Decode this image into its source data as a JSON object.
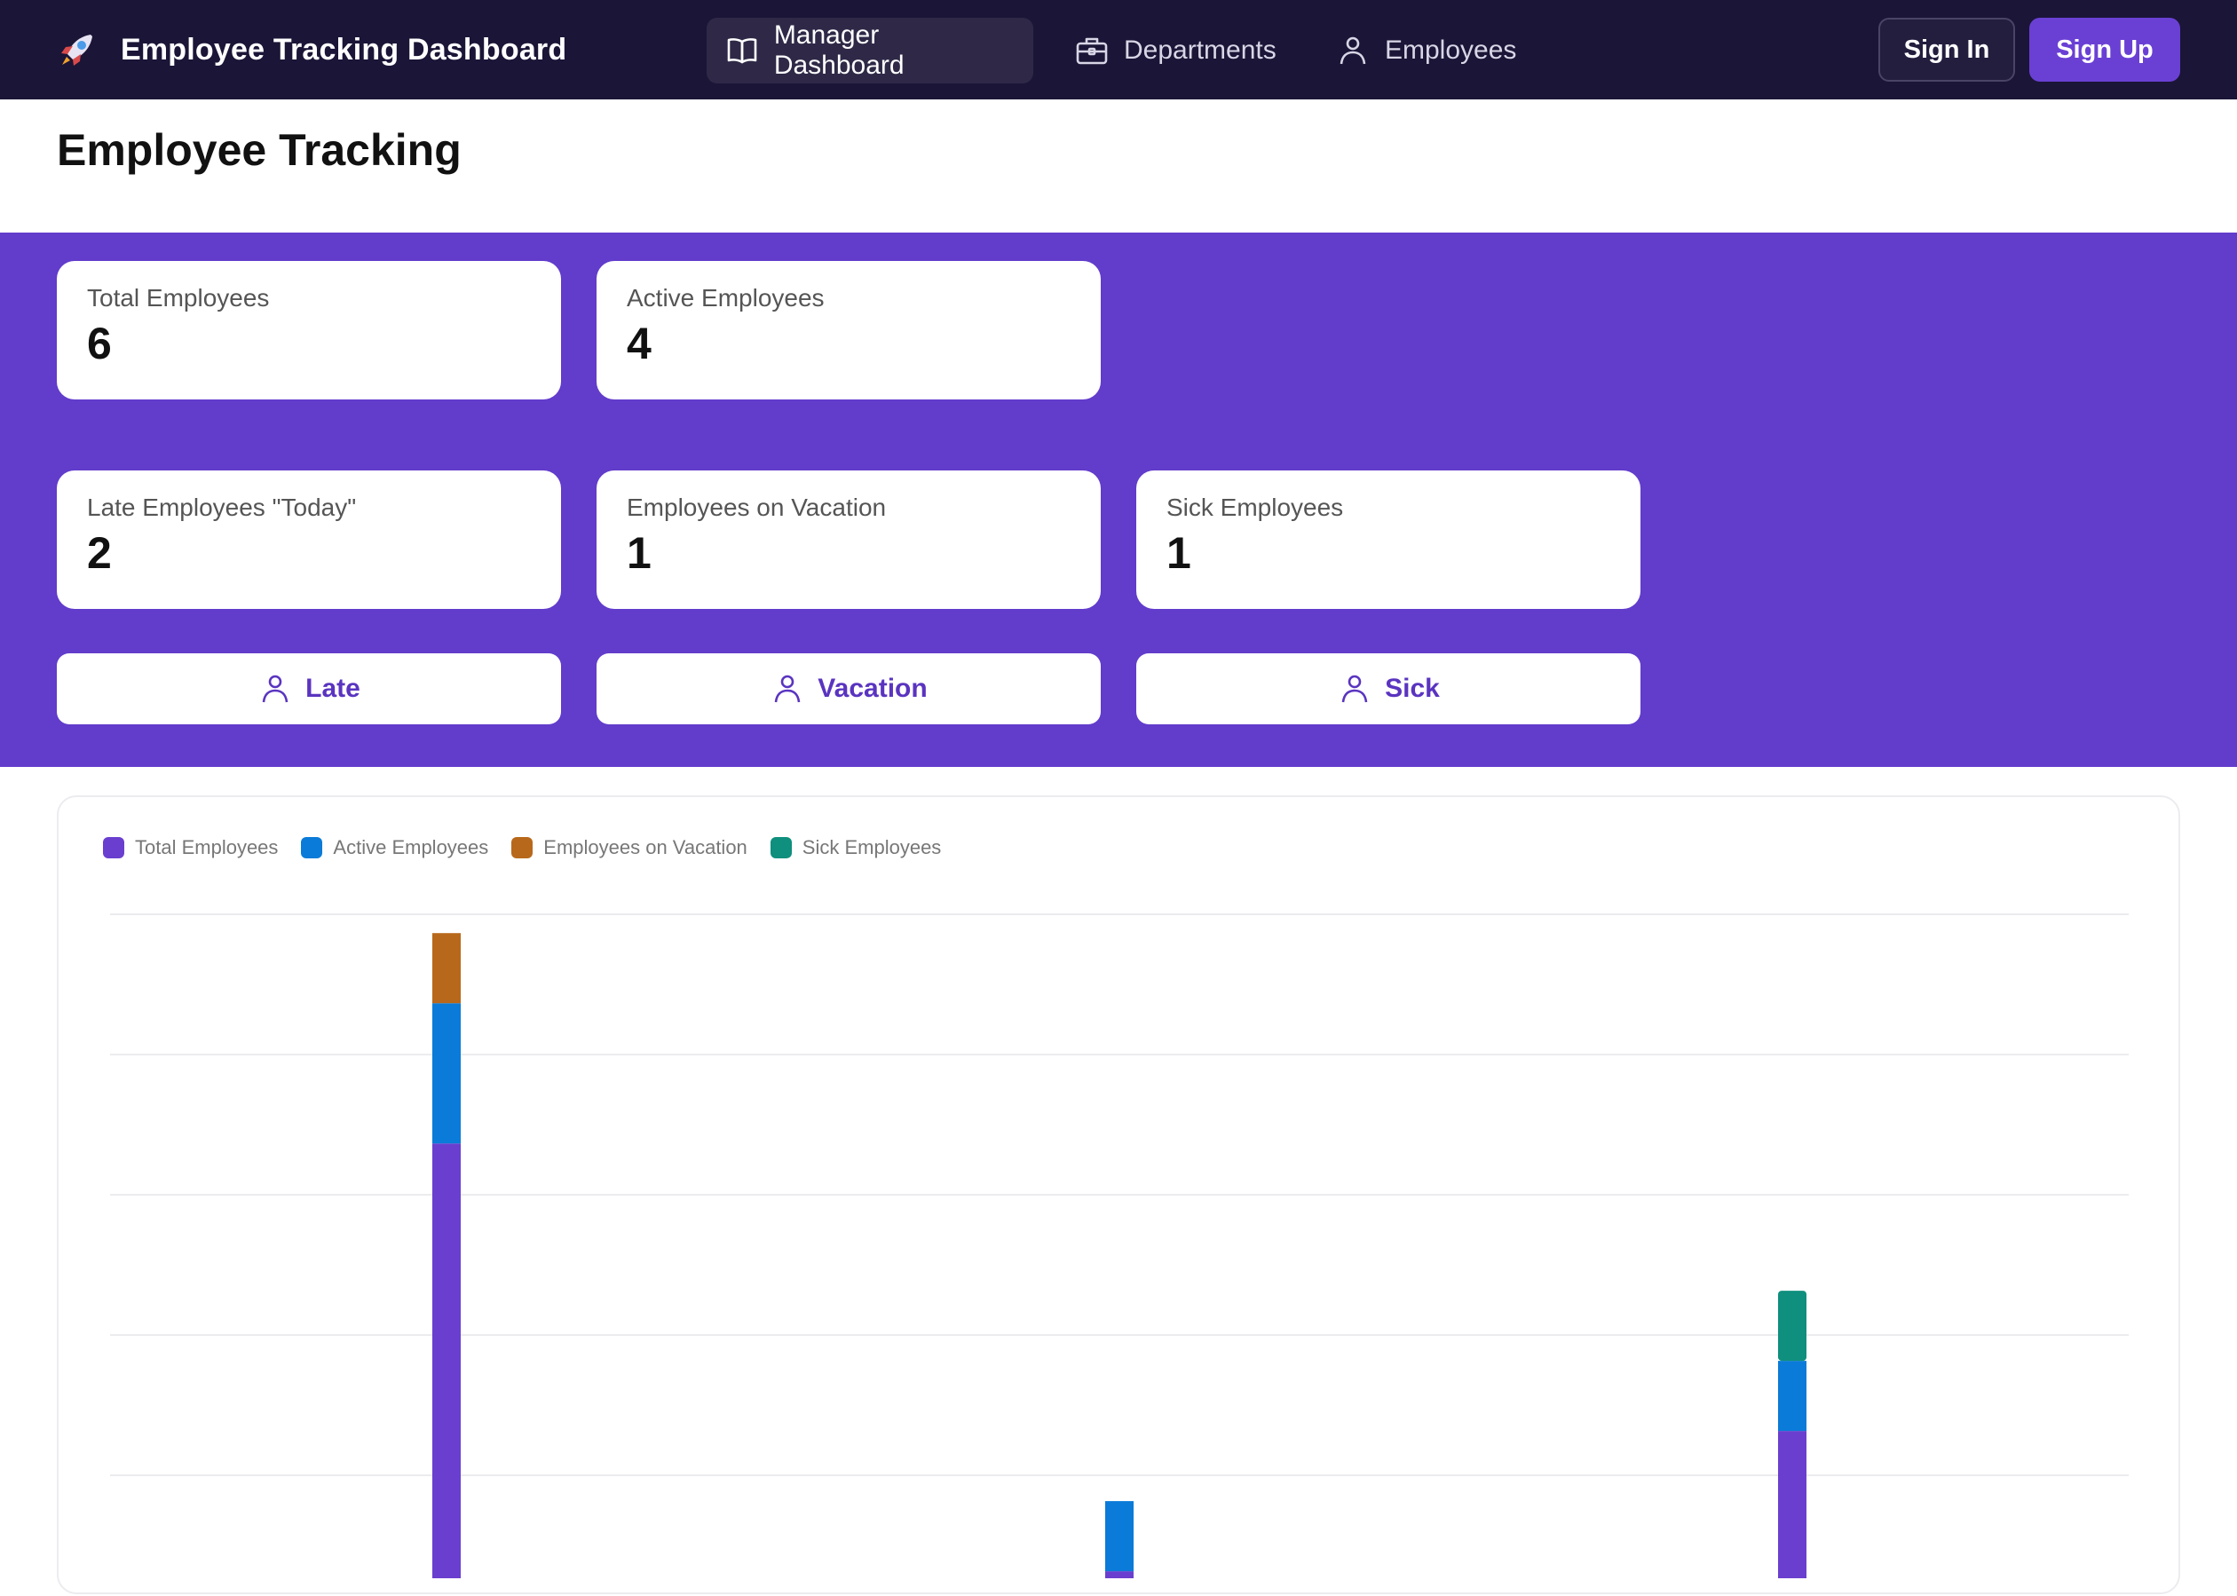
{
  "navbar": {
    "brand_title": "Employee Tracking Dashboard",
    "brand_icon": "rocket-icon",
    "items": [
      {
        "label": "Manager Dashboard",
        "icon": "book-open-icon",
        "active": true
      },
      {
        "label": "Departments",
        "icon": "briefcase-icon",
        "active": false
      },
      {
        "label": "Employees",
        "icon": "user-icon",
        "active": false
      }
    ],
    "sign_in_label": "Sign In",
    "sign_up_label": "Sign Up"
  },
  "page": {
    "title": "Employee Tracking"
  },
  "stats": [
    {
      "label": "Total Employees",
      "value": "6"
    },
    {
      "label": "Active Employees",
      "value": "4"
    },
    {
      "label": "Late Employees \"Today\"",
      "value": "2"
    },
    {
      "label": "Employees on Vacation",
      "value": "1"
    },
    {
      "label": "Sick Employees",
      "value": "1"
    }
  ],
  "actions": [
    {
      "label": "Late",
      "icon": "user-icon"
    },
    {
      "label": "Vacation",
      "icon": "user-icon"
    },
    {
      "label": "Sick",
      "icon": "user-icon"
    }
  ],
  "colors": {
    "navbar_bg": "#1b1537",
    "accent": "#623ccb",
    "total": "#6a3fcf",
    "active": "#0a7bd8",
    "vacation": "#b8681a",
    "sick": "#0f8f7e"
  },
  "chart_data": {
    "type": "bar",
    "stacked": true,
    "title": "",
    "xlabel": "",
    "ylabel": "",
    "categories": [
      "",
      "",
      ""
    ],
    "series": [
      {
        "name": "Total Employees",
        "color": "#6a3fcf",
        "values": [
          3.1,
          0.05,
          1.05
        ]
      },
      {
        "name": "Active Employees",
        "color": "#0a7bd8",
        "values": [
          1,
          0.5,
          0.5
        ]
      },
      {
        "name": "Employees on Vacation",
        "color": "#b8681a",
        "values": [
          0.5,
          0,
          0
        ]
      },
      {
        "name": "Sick Employees",
        "color": "#0f8f7e",
        "values": [
          0,
          0,
          0.5
        ]
      }
    ],
    "grid": true,
    "legend_position": "top-left"
  }
}
